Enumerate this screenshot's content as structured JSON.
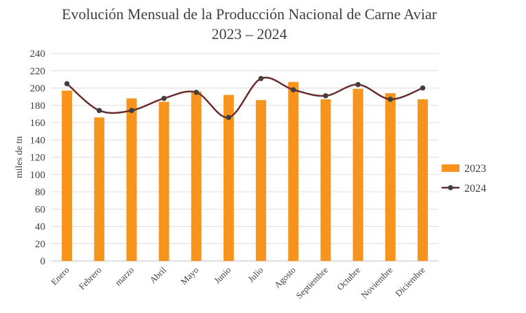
{
  "chart_data": {
    "type": "bar",
    "title": "Evolución Mensual de la Producción Nacional de Carne Aviar",
    "subtitle": "2023 – 2024",
    "ylabel": "miles  de tn",
    "xlabel": "",
    "ylim": [
      0,
      240
    ],
    "yticks": [
      0,
      20,
      40,
      60,
      80,
      100,
      120,
      140,
      160,
      180,
      200,
      220,
      240
    ],
    "grid": true,
    "legend_position": "right",
    "categories": [
      "Enero",
      "Febrero",
      "marzo",
      "Abril",
      "Mayo",
      "Junio",
      "Julio",
      "Agosto",
      "Septiembre",
      "Octubre",
      "Noviembre",
      "Diciembre"
    ],
    "series": [
      {
        "name": "2023",
        "type": "bar",
        "color": "#F7941D",
        "values": [
          197,
          166,
          188,
          184,
          196,
          192,
          186,
          207,
          187,
          199,
          194,
          187
        ]
      },
      {
        "name": "2024",
        "type": "line",
        "color": "#6B2A2A",
        "marker_color": "#404040",
        "values": [
          205,
          174,
          174,
          188,
          195,
          166,
          211,
          198,
          191,
          204,
          187,
          200
        ]
      }
    ]
  }
}
